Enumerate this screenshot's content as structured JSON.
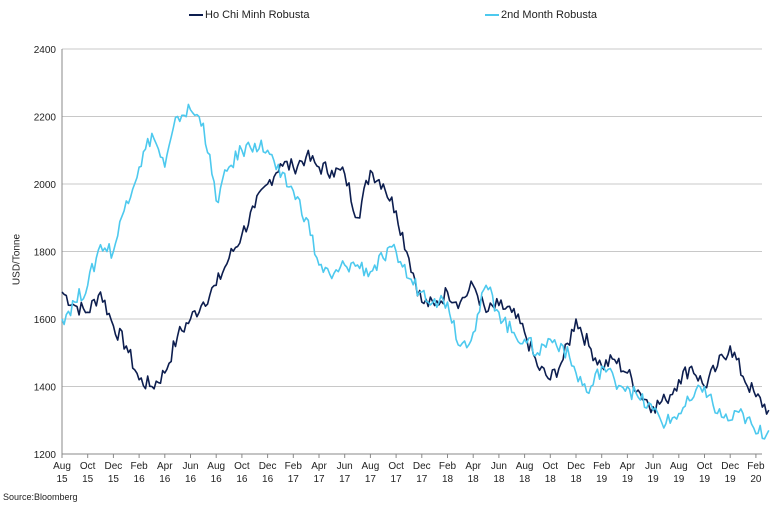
{
  "chart_data": {
    "type": "line",
    "title": "",
    "xlabel": "",
    "ylabel": "USD/Tonne",
    "ylim": [
      1200,
      2400
    ],
    "yticks": [
      1200,
      1400,
      1600,
      1800,
      2000,
      2200,
      2400
    ],
    "grid": "horizontal",
    "legend_position": "top",
    "source": "Source:Bloomberg",
    "x_tick_labels": [
      [
        "Aug",
        "15"
      ],
      [
        "Oct",
        "15"
      ],
      [
        "Dec",
        "15"
      ],
      [
        "Feb",
        "16"
      ],
      [
        "Apr",
        "16"
      ],
      [
        "Jun",
        "16"
      ],
      [
        "Aug",
        "16"
      ],
      [
        "Oct",
        "16"
      ],
      [
        "Dec",
        "16"
      ],
      [
        "Feb",
        "17"
      ],
      [
        "Apr",
        "17"
      ],
      [
        "Jun",
        "17"
      ],
      [
        "Aug",
        "17"
      ],
      [
        "Oct",
        "17"
      ],
      [
        "Dec",
        "17"
      ],
      [
        "Feb",
        "18"
      ],
      [
        "Apr",
        "18"
      ],
      [
        "Jun",
        "18"
      ],
      [
        "Aug",
        "18"
      ],
      [
        "Oct",
        "18"
      ],
      [
        "Dec",
        "18"
      ],
      [
        "Feb",
        "19"
      ],
      [
        "Apr",
        "19"
      ],
      [
        "Jun",
        "19"
      ],
      [
        "Aug",
        "19"
      ],
      [
        "Oct",
        "19"
      ],
      [
        "Dec",
        "19"
      ],
      [
        "Feb",
        "20"
      ]
    ],
    "x": [
      "2015-08",
      "2015-09",
      "2015-10",
      "2015-11",
      "2015-12",
      "2016-01",
      "2016-02",
      "2016-03",
      "2016-04",
      "2016-05",
      "2016-06",
      "2016-07",
      "2016-08",
      "2016-09",
      "2016-10",
      "2016-11",
      "2016-12",
      "2017-01",
      "2017-02",
      "2017-03",
      "2017-04",
      "2017-05",
      "2017-06",
      "2017-07",
      "2017-08",
      "2017-09",
      "2017-10",
      "2017-11",
      "2017-12",
      "2018-01",
      "2018-02",
      "2018-03",
      "2018-04",
      "2018-05",
      "2018-06",
      "2018-07",
      "2018-08",
      "2018-09",
      "2018-10",
      "2018-11",
      "2018-12",
      "2019-01",
      "2019-02",
      "2019-03",
      "2019-04",
      "2019-05",
      "2019-06",
      "2019-07",
      "2019-08",
      "2019-09",
      "2019-10",
      "2019-11",
      "2019-12",
      "2020-01",
      "2020-02",
      "2020-03"
    ],
    "series": [
      {
        "name": "Ho Chi Minh Robusta",
        "color": "#0d1e4f",
        "values": [
          1680,
          1640,
          1620,
          1680,
          1580,
          1520,
          1420,
          1400,
          1440,
          1550,
          1600,
          1650,
          1700,
          1780,
          1850,
          1930,
          2000,
          2060,
          2050,
          2080,
          2050,
          2040,
          2030,
          1900,
          2040,
          2000,
          1920,
          1780,
          1650,
          1640,
          1680,
          1650,
          1700,
          1620,
          1640,
          1620,
          1560,
          1460,
          1420,
          1480,
          1600,
          1520,
          1460,
          1480,
          1440,
          1380,
          1340,
          1360,
          1420,
          1460,
          1400,
          1460,
          1520,
          1430,
          1370,
          1330
        ]
      },
      {
        "name": "2nd Month Robusta",
        "color": "#4dc9ee",
        "values": [
          1600,
          1650,
          1700,
          1820,
          1800,
          1950,
          2050,
          2150,
          2050,
          2200,
          2220,
          2180,
          1950,
          2050,
          2100,
          2120,
          2100,
          2020,
          1980,
          1900,
          1760,
          1720,
          1760,
          1760,
          1740,
          1780,
          1800,
          1720,
          1680,
          1660,
          1650,
          1520,
          1560,
          1700,
          1620,
          1560,
          1540,
          1500,
          1540,
          1520,
          1440,
          1380,
          1460,
          1420,
          1400,
          1360,
          1330,
          1290,
          1320,
          1360,
          1400,
          1320,
          1300,
          1320,
          1260,
          1270
        ]
      }
    ]
  }
}
